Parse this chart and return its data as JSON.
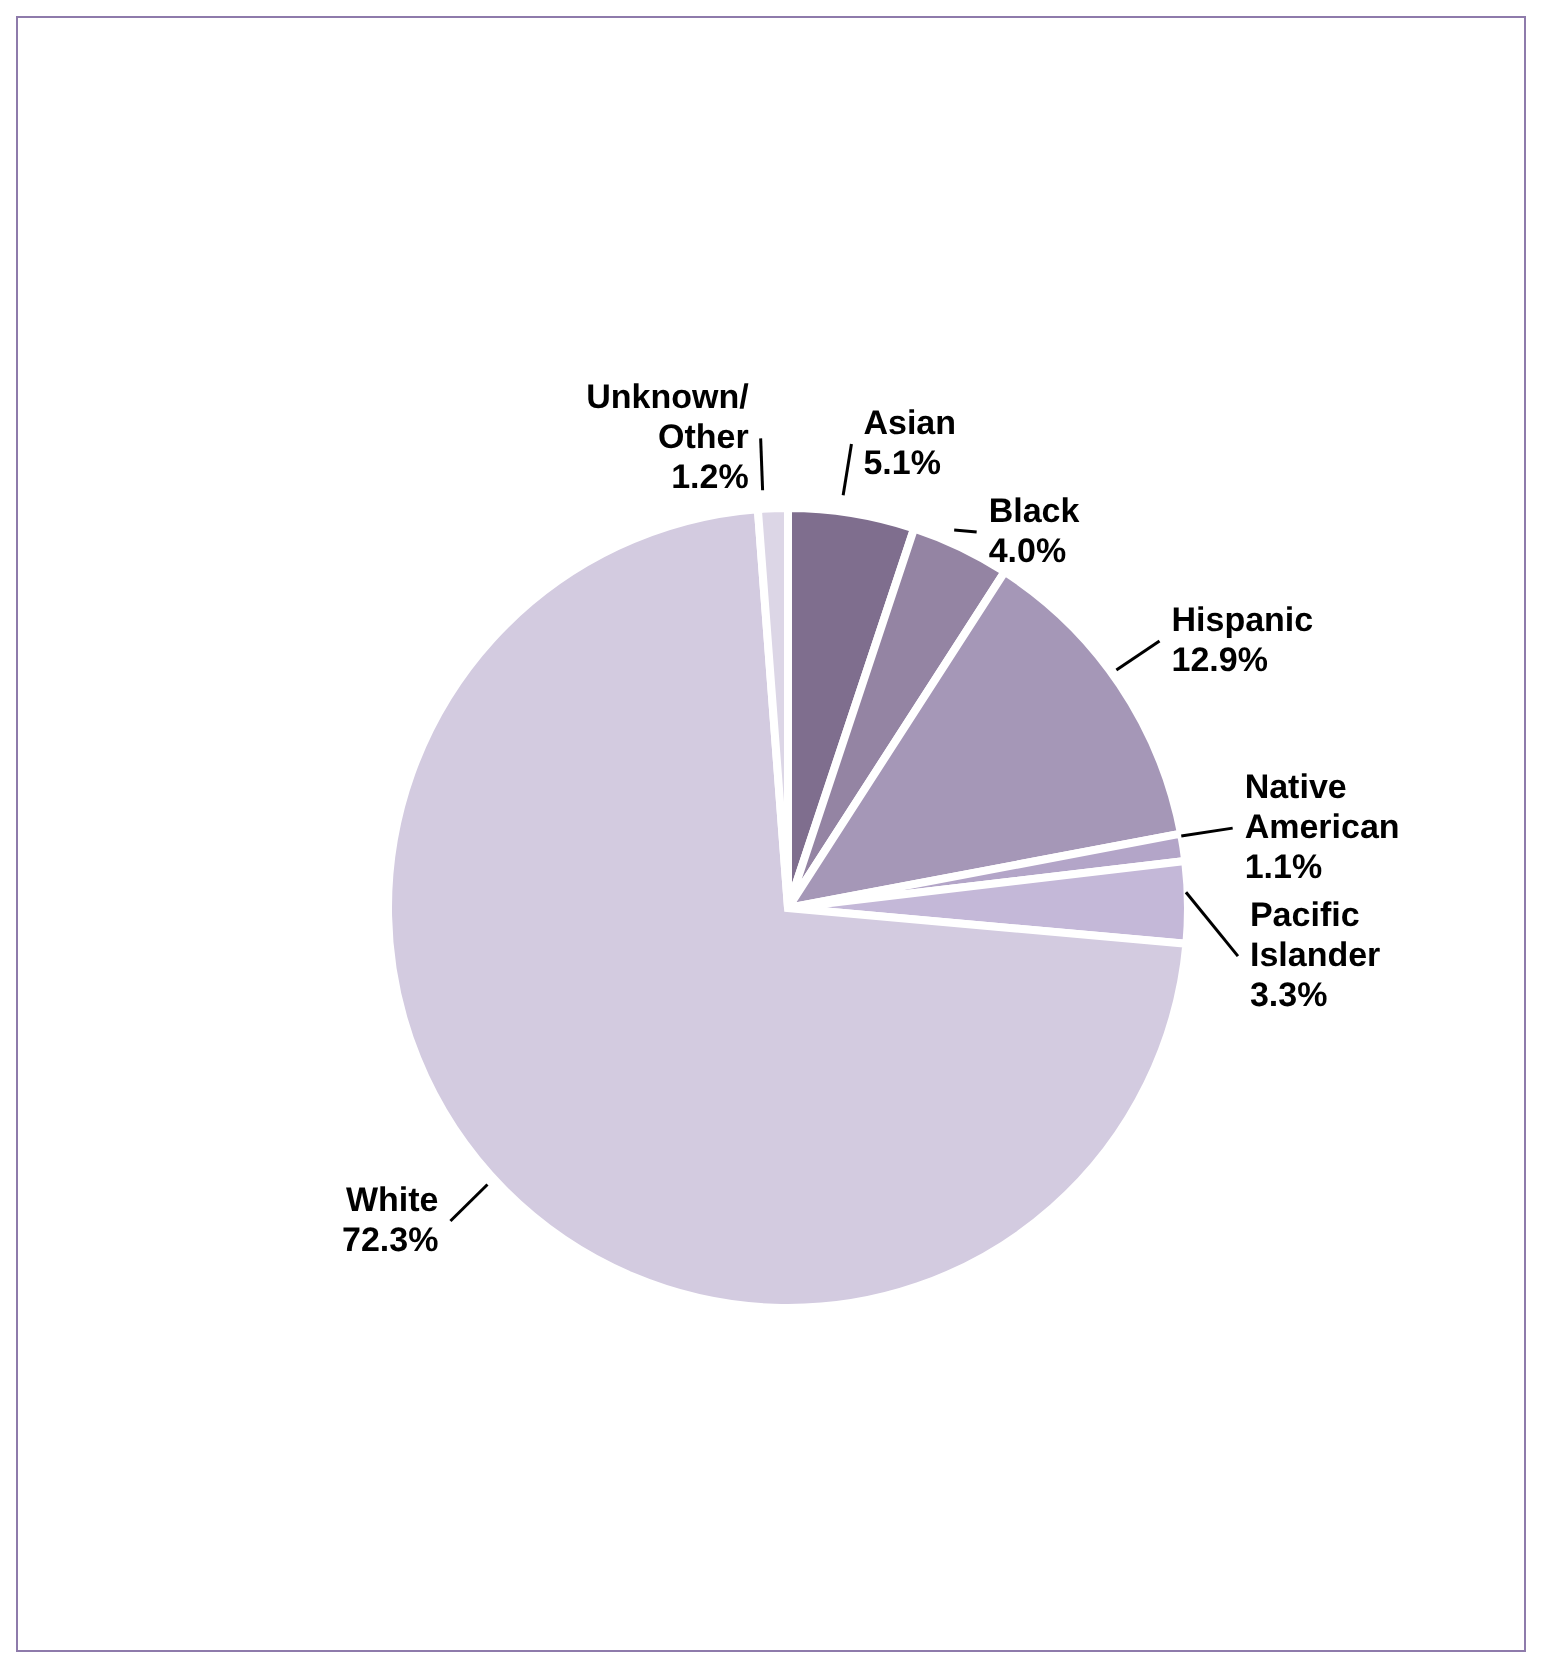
{
  "chart_data": {
    "type": "pie",
    "categories": [
      "Asian",
      "Black",
      "Hispanic",
      "Native American",
      "Pacific Islander",
      "White",
      "Unknown/Other"
    ],
    "values": [
      5.1,
      4.0,
      12.9,
      1.1,
      3.3,
      72.3,
      1.2
    ],
    "value_labels": [
      "5.1%",
      "4.0%",
      "12.9%",
      "1.1%",
      "3.3%",
      "72.3%",
      "1.2%"
    ],
    "colors": [
      "#7f6e8e",
      "#9484a3",
      "#a597b7",
      "#b3a5c8",
      "#c4b8d8",
      "#d3cbe0",
      "#dcd6e6"
    ],
    "legend": false
  }
}
